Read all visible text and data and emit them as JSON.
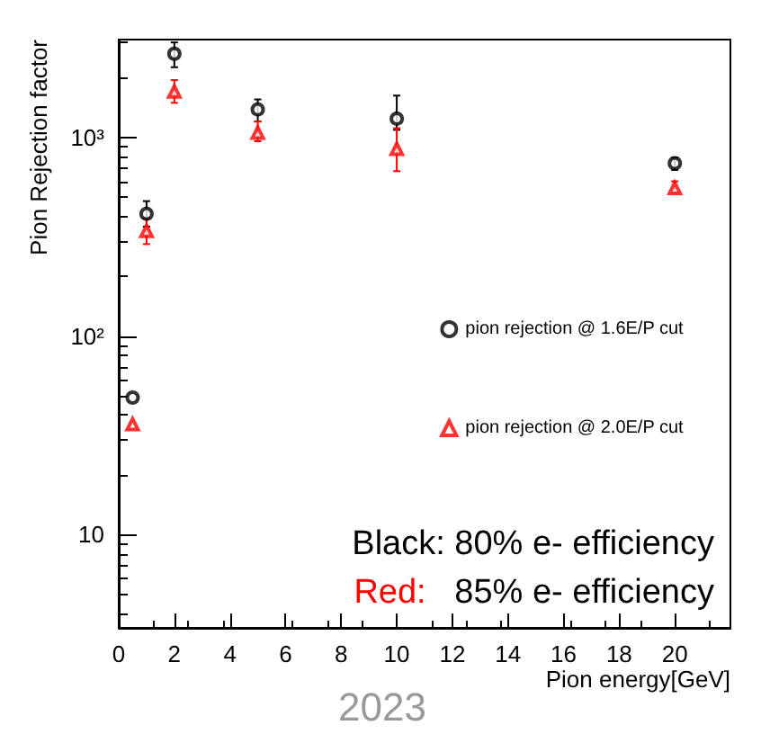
{
  "chart_data": {
    "type": "scatter",
    "xlabel": "Pion energy[GeV]",
    "ylabel": "Pion Rejection factor",
    "x": [
      0.5,
      1,
      2,
      5,
      10,
      20
    ],
    "series": [
      {
        "name": "pion rejection @ 1.6E/P cut",
        "color": "#000000",
        "marker": "circle",
        "values": [
          49,
          412,
          2630,
          1380,
          1240,
          740
        ],
        "errors": [
          null,
          [
            355,
            477
          ],
          [
            2250,
            3000
          ],
          [
            1200,
            1550
          ],
          [
            1090,
            1620
          ],
          [
            685,
            790
          ]
        ]
      },
      {
        "name": "pion rejection @ 2.0E/P cut",
        "color": "#ff0000",
        "marker": "triangle",
        "values": [
          36,
          338,
          1700,
          1055,
          875,
          555
        ],
        "errors": [
          null,
          [
            290,
            390
          ],
          [
            1490,
            1940
          ],
          [
            955,
            1200
          ],
          [
            675,
            1110
          ],
          [
            527,
            600
          ]
        ]
      }
    ],
    "xlim": [
      0,
      22
    ],
    "xticks": [
      0,
      2,
      4,
      6,
      8,
      10,
      12,
      14,
      16,
      18,
      20
    ],
    "ylim": [
      3.4,
      3100
    ],
    "yticks": [
      10,
      {
        "value": 100,
        "label": "10²"
      },
      {
        "value": 1000,
        "label": "10³"
      }
    ],
    "log": "y",
    "grid": false,
    "legend": "right",
    "annotations": [
      "Black: 80% e- efficiency",
      "Red:   85% e- efficiency",
      "2023"
    ]
  }
}
